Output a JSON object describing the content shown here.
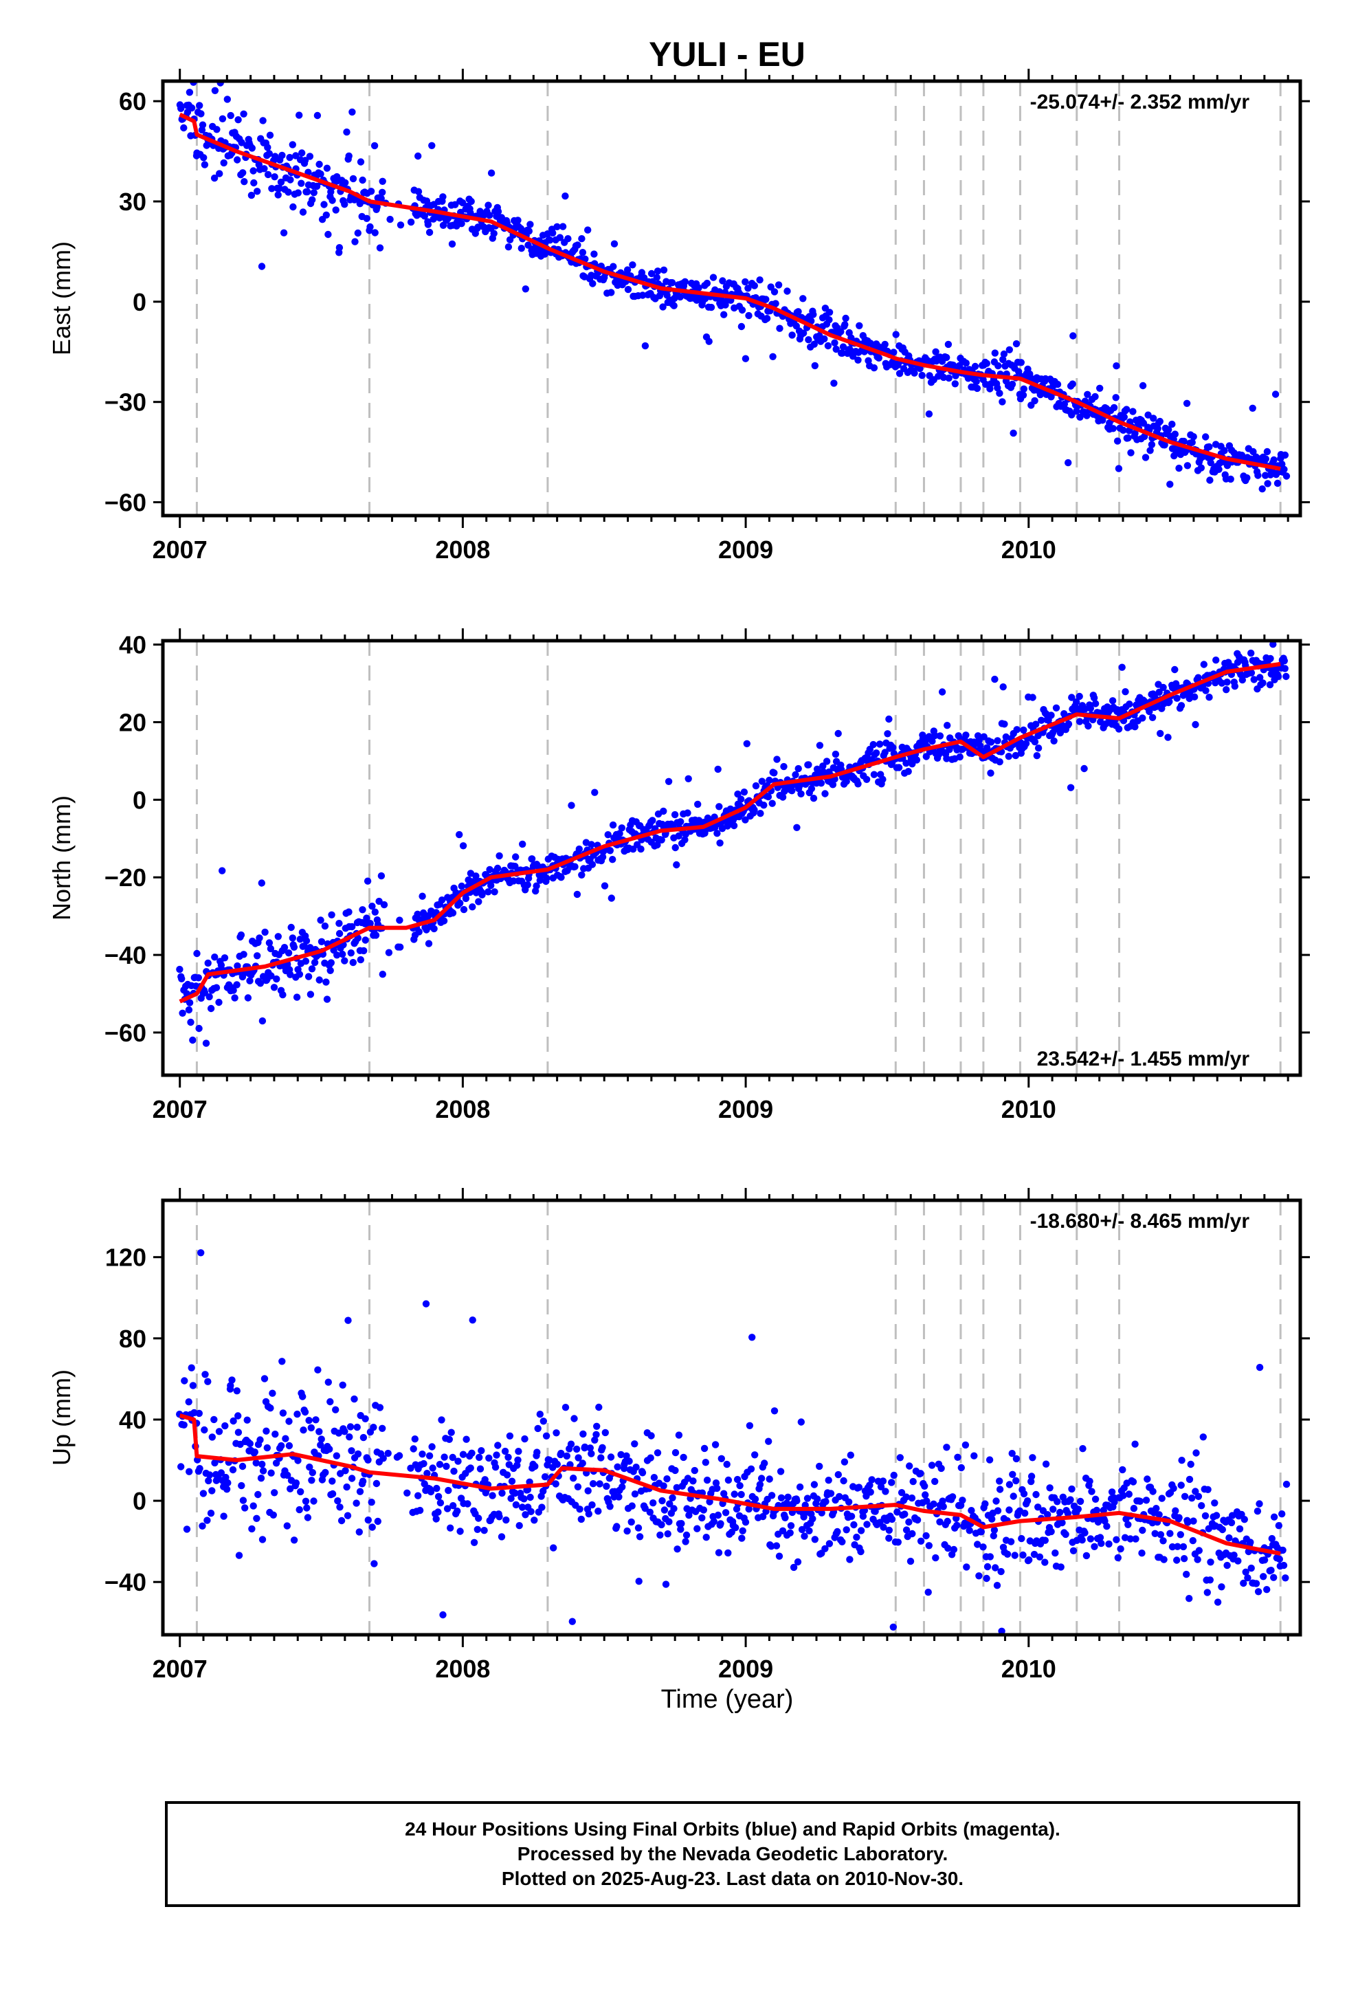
{
  "title": "YULI - EU",
  "xlabel": "Time (year)",
  "x_tick_labels": [
    "2007",
    "2008",
    "2009",
    "2010"
  ],
  "colors": {
    "data": "#0000ff",
    "model": "#ff0000",
    "offset_line": "#bfbfbf",
    "axes": "#000000"
  },
  "offset_epochs": [
    2007.06,
    2007.67,
    2008.3,
    2009.53,
    2009.63,
    2009.76,
    2009.84,
    2009.97,
    2010.17,
    2010.32,
    2010.89
  ],
  "footer": {
    "line1": "24 Hour Positions Using Final Orbits (blue) and Rapid Orbits (magenta).",
    "line2": "Processed by the Nevada Geodetic Laboratory.",
    "line3": "Plotted on 2025-Aug-23. Last data on 2010-Nov-30."
  },
  "chart_data": [
    {
      "type": "scatter",
      "component": "east",
      "ylabel": "East (mm)",
      "rate_label": "-25.074+/- 2.352 mm/yr",
      "xlim": [
        2006.94,
        2010.96
      ],
      "ylim": [
        -64,
        66
      ],
      "yticks": [
        60,
        30,
        0,
        -30,
        -60
      ],
      "model_line": {
        "x": [
          2007.0,
          2007.05,
          2007.06,
          2007.2,
          2007.4,
          2007.6,
          2007.67,
          2007.9,
          2008.1,
          2008.3,
          2008.5,
          2008.7,
          2008.9,
          2009.0,
          2009.1,
          2009.3,
          2009.5,
          2009.53,
          2009.63,
          2009.76,
          2009.84,
          2009.97,
          2010.17,
          2010.32,
          2010.5,
          2010.7,
          2010.89
        ],
        "y": [
          56,
          54,
          50,
          45,
          39,
          33,
          30,
          27,
          24,
          16,
          9,
          4,
          2,
          1,
          -2,
          -10,
          -16,
          -17,
          -19,
          -21,
          -22,
          -23,
          -30,
          -36,
          -42,
          -47,
          -50
        ]
      },
      "scatter_sampling": {
        "x_start": 2007.0,
        "x_end": 2010.91,
        "count": 1150,
        "scatter_mm": 2.8,
        "outlier_fraction": 0.03,
        "extra_noise_until": 2007.8,
        "extra_noise_mm": 6
      }
    },
    {
      "type": "scatter",
      "component": "north",
      "ylabel": "North (mm)",
      "rate_label": "23.542+/- 1.455 mm/yr",
      "xlim": [
        2006.94,
        2010.96
      ],
      "ylim": [
        -71,
        41
      ],
      "yticks": [
        40,
        20,
        0,
        -20,
        -40,
        -60
      ],
      "model_line": {
        "x": [
          2007.0,
          2007.06,
          2007.1,
          2007.3,
          2007.5,
          2007.67,
          2007.8,
          2007.9,
          2008.0,
          2008.1,
          2008.3,
          2008.5,
          2008.7,
          2008.85,
          2009.0,
          2009.1,
          2009.3,
          2009.53,
          2009.63,
          2009.76,
          2009.84,
          2009.97,
          2010.17,
          2010.32,
          2010.5,
          2010.7,
          2010.89
        ],
        "y": [
          -52,
          -50,
          -45,
          -43,
          -39,
          -33,
          -33,
          -31,
          -24,
          -20,
          -18,
          -12,
          -8,
          -7,
          -2,
          4,
          6,
          11,
          13,
          15,
          11,
          16,
          22,
          21,
          27,
          33,
          35
        ]
      },
      "scatter_sampling": {
        "x_start": 2007.0,
        "x_end": 2010.91,
        "count": 1150,
        "scatter_mm": 2.2,
        "outlier_fraction": 0.03,
        "extra_noise_until": 2007.8,
        "extra_noise_mm": 4
      }
    },
    {
      "type": "scatter",
      "component": "up",
      "ylabel": "Up (mm)",
      "rate_label": "-18.680+/- 8.465 mm/yr",
      "xlim": [
        2006.94,
        2010.96
      ],
      "ylim": [
        -66,
        148
      ],
      "yticks": [
        120,
        80,
        40,
        0,
        -40
      ],
      "model_line": {
        "x": [
          2007.0,
          2007.05,
          2007.06,
          2007.2,
          2007.4,
          2007.6,
          2007.67,
          2007.9,
          2008.1,
          2008.3,
          2008.35,
          2008.5,
          2008.7,
          2008.9,
          2009.1,
          2009.3,
          2009.53,
          2009.63,
          2009.76,
          2009.84,
          2009.97,
          2010.17,
          2010.32,
          2010.5,
          2010.7,
          2010.89
        ],
        "y": [
          42,
          40,
          22,
          20,
          23,
          17,
          14,
          11,
          6,
          8,
          16,
          15,
          5,
          1,
          -4,
          -4,
          -2,
          -5,
          -7,
          -13,
          -10,
          -8,
          -6,
          -10,
          -21,
          -26
        ]
      },
      "scatter_sampling": {
        "x_start": 2007.0,
        "x_end": 2010.91,
        "count": 1150,
        "scatter_mm": 13,
        "outlier_fraction": 0.03,
        "extra_noise_until": 2007.8,
        "extra_noise_mm": 10
      }
    }
  ]
}
